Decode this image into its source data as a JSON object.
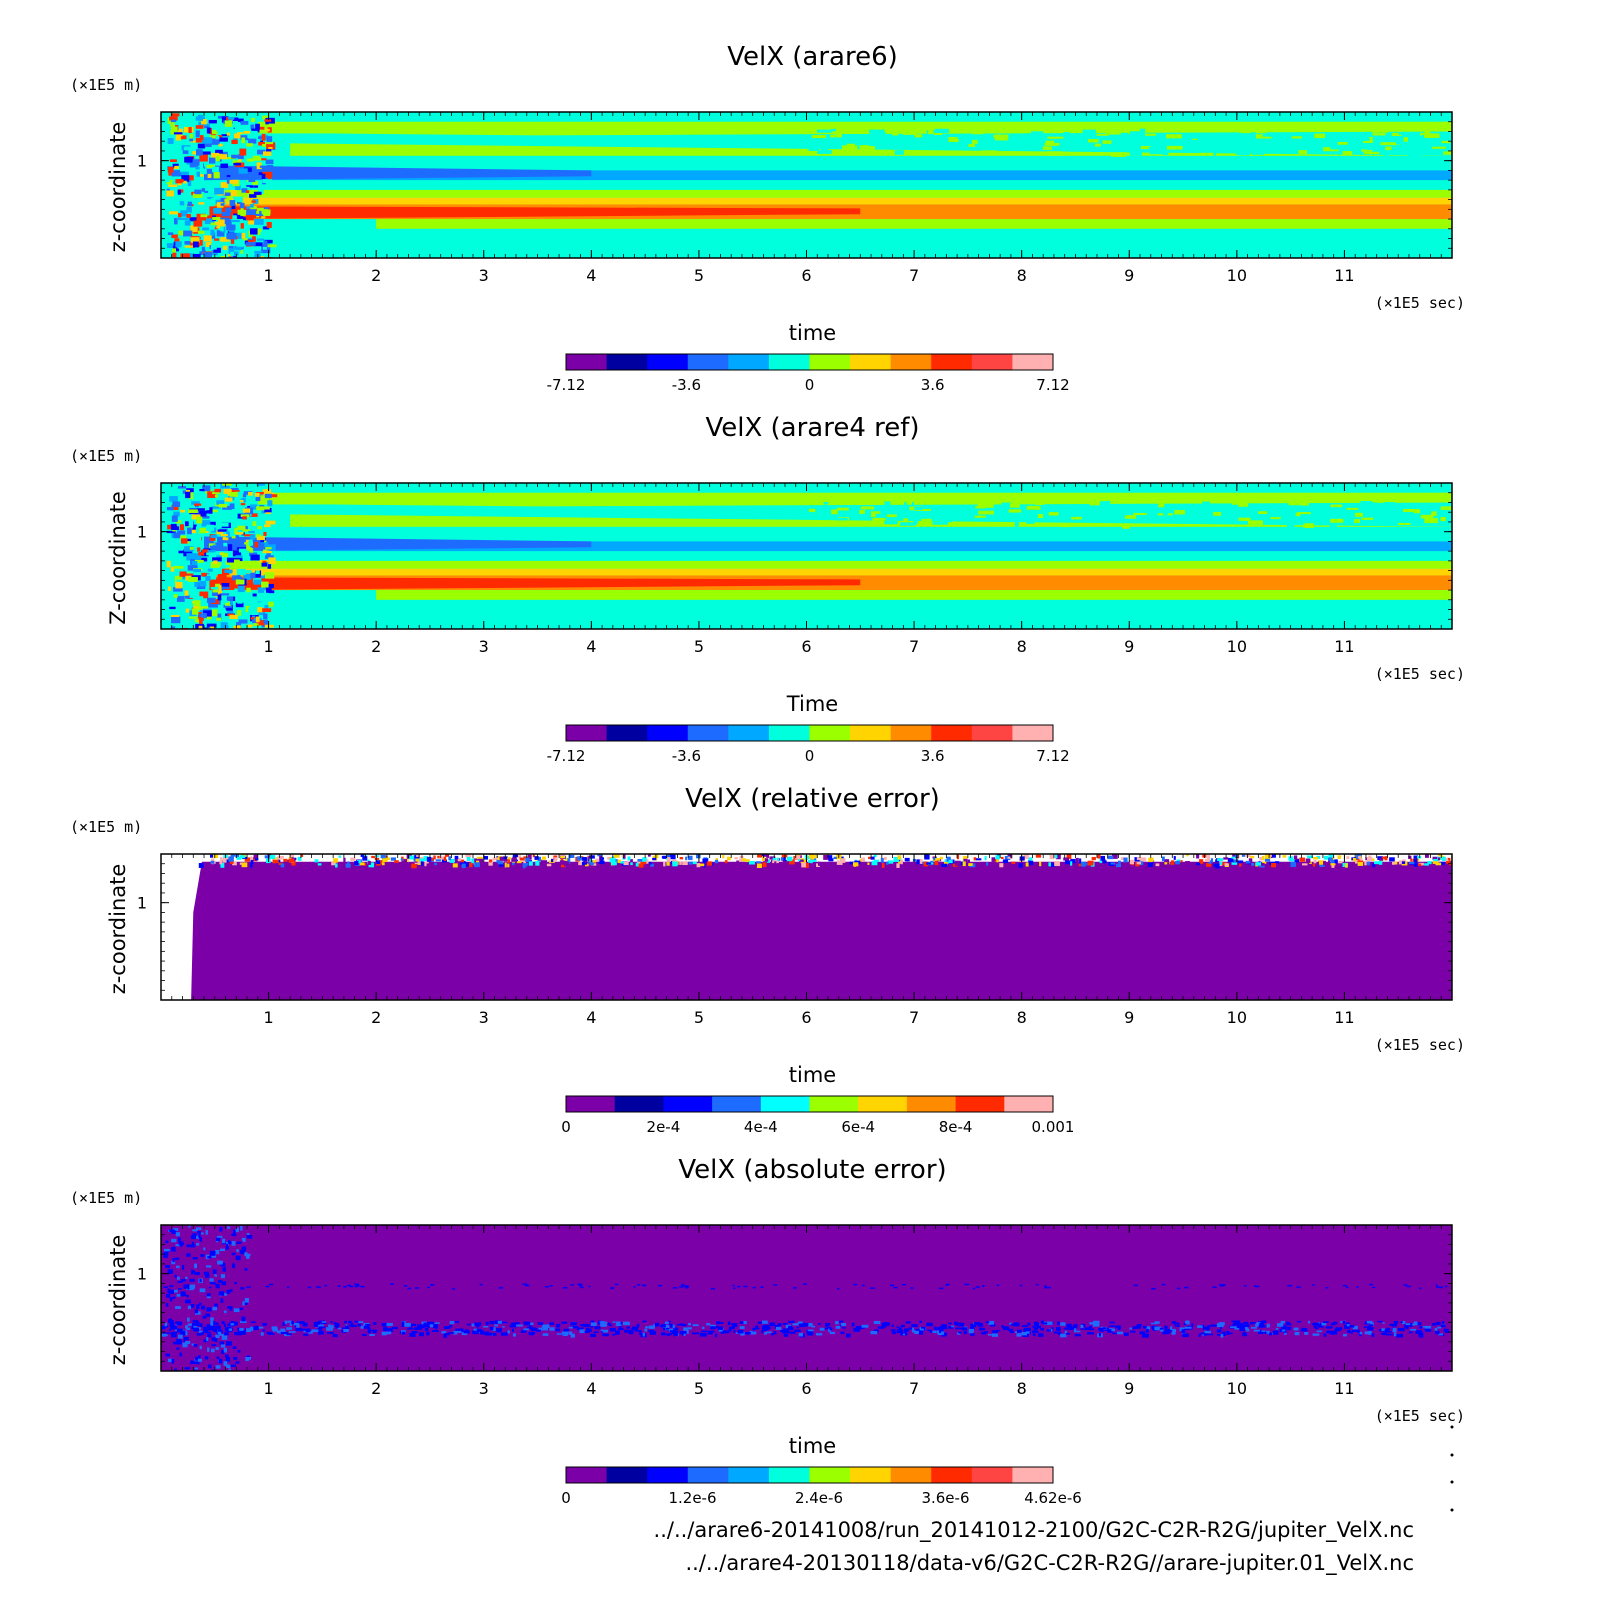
{
  "chart_data": [
    {
      "type": "heatmap",
      "title": "VelX (arare6)",
      "xlabel": "time",
      "ylabel": "z-coordinate",
      "x_unit": "(×1E5 sec)",
      "y_unit": "(×1E5 m)",
      "xticks": [
        "1",
        "2",
        "3",
        "4",
        "5",
        "6",
        "7",
        "8",
        "9",
        "10",
        "11"
      ],
      "yticks": [
        "1"
      ],
      "xlim": [
        0,
        12
      ],
      "ylim": [
        0,
        1.5
      ],
      "colorbar": {
        "ticks": [
          "-7.12",
          "-3.6",
          "0",
          "3.6",
          "7.12"
        ],
        "range": [
          -7.12,
          7.12
        ],
        "colors": [
          "#7b00a8",
          "#0000a0",
          "#0000ff",
          "#1e6cff",
          "#00a8ff",
          "#00ffdd",
          "#9cff00",
          "#ffd400",
          "#ff8c00",
          "#ff2a00",
          "#ff4444",
          "#ffb0b0"
        ]
      },
      "features": [
        "jet band near z=0.5 (positive, red)",
        "negative band near z=0.9 (blue)",
        "turbulent onset before t=0.6"
      ]
    },
    {
      "type": "heatmap",
      "title": "VelX (arare4 ref)",
      "xlabel": "Time",
      "ylabel": "Z-coordinate",
      "x_unit": "(×1E5 sec)",
      "y_unit": "(×1E5 m)",
      "xticks": [
        "1",
        "2",
        "3",
        "4",
        "5",
        "6",
        "7",
        "8",
        "9",
        "10",
        "11"
      ],
      "yticks": [
        "1"
      ],
      "xlim": [
        0,
        12
      ],
      "ylim": [
        0,
        1.5
      ],
      "colorbar": {
        "ticks": [
          "-7.12",
          "-3.6",
          "0",
          "3.6",
          "7.12"
        ],
        "range": [
          -7.12,
          7.12
        ],
        "colors": [
          "#7b00a8",
          "#0000a0",
          "#0000ff",
          "#1e6cff",
          "#00a8ff",
          "#00ffdd",
          "#9cff00",
          "#ffd400",
          "#ff8c00",
          "#ff2a00",
          "#ff4444",
          "#ffb0b0"
        ]
      }
    },
    {
      "type": "heatmap",
      "title": "VelX (relative error)",
      "xlabel": "time",
      "ylabel": "z-coordinate",
      "x_unit": "(×1E5 sec)",
      "y_unit": "(×1E5 m)",
      "xticks": [
        "1",
        "2",
        "3",
        "4",
        "5",
        "6",
        "7",
        "8",
        "9",
        "10",
        "11"
      ],
      "yticks": [
        "1"
      ],
      "xlim": [
        0,
        12
      ],
      "ylim": [
        0,
        1.5
      ],
      "colorbar": {
        "ticks": [
          "0",
          "2e-4",
          "4e-4",
          "6e-4",
          "8e-4",
          "0.001"
        ],
        "range": [
          0,
          0.001
        ],
        "colors": [
          "#7b00a8",
          "#0000a0",
          "#0000ff",
          "#1e6cff",
          "#00ffff",
          "#9cff00",
          "#ffd400",
          "#ff8c00",
          "#ff2a00",
          "#ffb0b0"
        ]
      }
    },
    {
      "type": "heatmap",
      "title": "VelX (absolute error)",
      "xlabel": "time",
      "ylabel": "z-coordinate",
      "x_unit": "(×1E5 sec)",
      "y_unit": "(×1E5 m)",
      "xticks": [
        "1",
        "2",
        "3",
        "4",
        "5",
        "6",
        "7",
        "8",
        "9",
        "10",
        "11"
      ],
      "yticks": [
        "1"
      ],
      "xlim": [
        0,
        12
      ],
      "ylim": [
        0,
        1.5
      ],
      "colorbar": {
        "ticks": [
          "0",
          "1.2e-6",
          "2.4e-6",
          "3.6e-6",
          "4.62e-6"
        ],
        "range": [
          0,
          4.62e-06
        ],
        "colors": [
          "#7b00a8",
          "#0000a0",
          "#0000ff",
          "#1e6cff",
          "#00a8ff",
          "#00ffdd",
          "#9cff00",
          "#ffd400",
          "#ff8c00",
          "#ff2a00",
          "#ff4444",
          "#ffb0b0"
        ]
      }
    }
  ],
  "footer": {
    "file1": "../../arare6-20141008/run_20141012-2100/G2C-C2R-R2G/jupiter_VelX.nc",
    "file2": "../../arare4-20130118/data-v6/G2C-C2R-R2G//arare-jupiter.01_VelX.nc"
  }
}
